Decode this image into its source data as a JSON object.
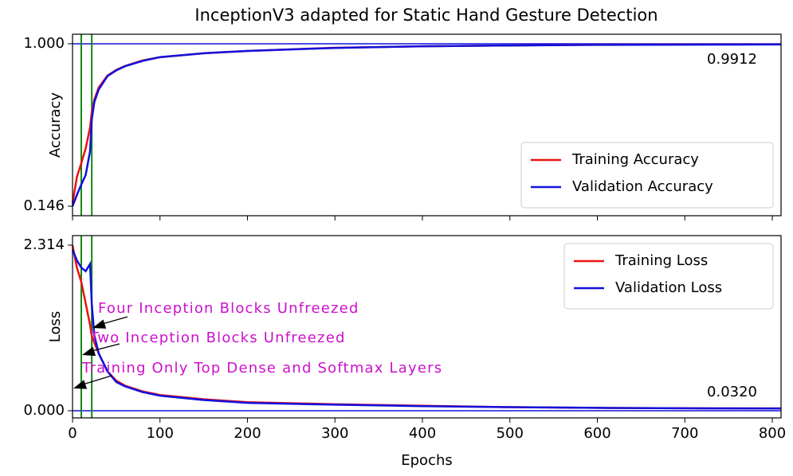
{
  "chart_data": [
    {
      "type": "line",
      "title": "InceptionV3 adapted for Static Hand Gesture Detection",
      "ylabel": "Accuracy",
      "x": [
        0,
        5,
        10,
        15,
        20,
        22,
        25,
        30,
        40,
        50,
        60,
        80,
        100,
        150,
        200,
        300,
        400,
        500,
        600,
        700,
        810
      ],
      "series": [
        {
          "name": "Training Accuracy",
          "color": "#ee1111",
          "values": [
            0.16,
            0.3,
            0.372,
            0.45,
            0.56,
            0.64,
            0.707,
            0.77,
            0.833,
            0.862,
            0.883,
            0.912,
            0.929,
            0.95,
            0.962,
            0.979,
            0.987,
            0.991,
            0.995,
            0.996,
            0.997
          ]
        },
        {
          "name": "Validation Accuracy",
          "color": "#1111dd",
          "values": [
            0.146,
            0.205,
            0.26,
            0.31,
            0.435,
            0.6,
            0.694,
            0.76,
            0.83,
            0.86,
            0.882,
            0.91,
            0.93,
            0.95,
            0.962,
            0.978,
            0.987,
            0.991,
            0.994,
            0.995,
            0.996
          ]
        }
      ],
      "xlim": [
        0,
        810
      ],
      "ylim": [
        0.096,
        1.05
      ],
      "yticks": [
        {
          "value": 0.146,
          "label": "0.146"
        },
        {
          "value": 1,
          "label": "1.000"
        }
      ],
      "hline": 1,
      "hline_color": "#1111dd",
      "vlines": [
        10,
        22
      ],
      "vline_color": "#118811",
      "end_value": 0.9912,
      "legend": "lower right"
    },
    {
      "type": "line",
      "ylabel": "Loss",
      "xlabel": "Epochs",
      "x": [
        0,
        5,
        10,
        15,
        20,
        22,
        25,
        30,
        40,
        50,
        60,
        80,
        100,
        150,
        200,
        300,
        400,
        500,
        600,
        700,
        810
      ],
      "series": [
        {
          "name": "Training Loss",
          "color": "#ee1111",
          "values": [
            2.31,
            2.0,
            1.8,
            1.5,
            1.2,
            1.05,
            0.95,
            0.8,
            0.55,
            0.42,
            0.35,
            0.27,
            0.22,
            0.16,
            0.12,
            0.09,
            0.07,
            0.05,
            0.04,
            0.035,
            0.032
          ]
        },
        {
          "name": "Validation Loss",
          "color": "#1111dd",
          "values": [
            2.25,
            2.1,
            2.0,
            1.95,
            2.05,
            1.5,
            1.05,
            0.8,
            0.55,
            0.4,
            0.34,
            0.26,
            0.21,
            0.15,
            0.11,
            0.085,
            0.065,
            0.05,
            0.04,
            0.035,
            0.032
          ]
        }
      ],
      "xlim": [
        0,
        810
      ],
      "ylim": [
        -0.1,
        2.447
      ],
      "xticks": [
        0,
        100,
        200,
        300,
        400,
        500,
        600,
        700,
        800
      ],
      "yticks": [
        {
          "value": 0,
          "label": "0.000"
        },
        2.314
      ],
      "hline": 0,
      "hline_color": "#1111dd",
      "vlines": [
        10,
        22
      ],
      "vline_color": "#118811",
      "end_value": {
        "value": 0.032,
        "label": "0.0320"
      },
      "legend": "upper right",
      "annotations": [
        "Four Inception Blocks Unfreezed",
        "Two Inception Blocks Unfreezed",
        "Training Only Top Dense and Softmax Layers"
      ],
      "annotation_color": "#cc11cc"
    }
  ]
}
